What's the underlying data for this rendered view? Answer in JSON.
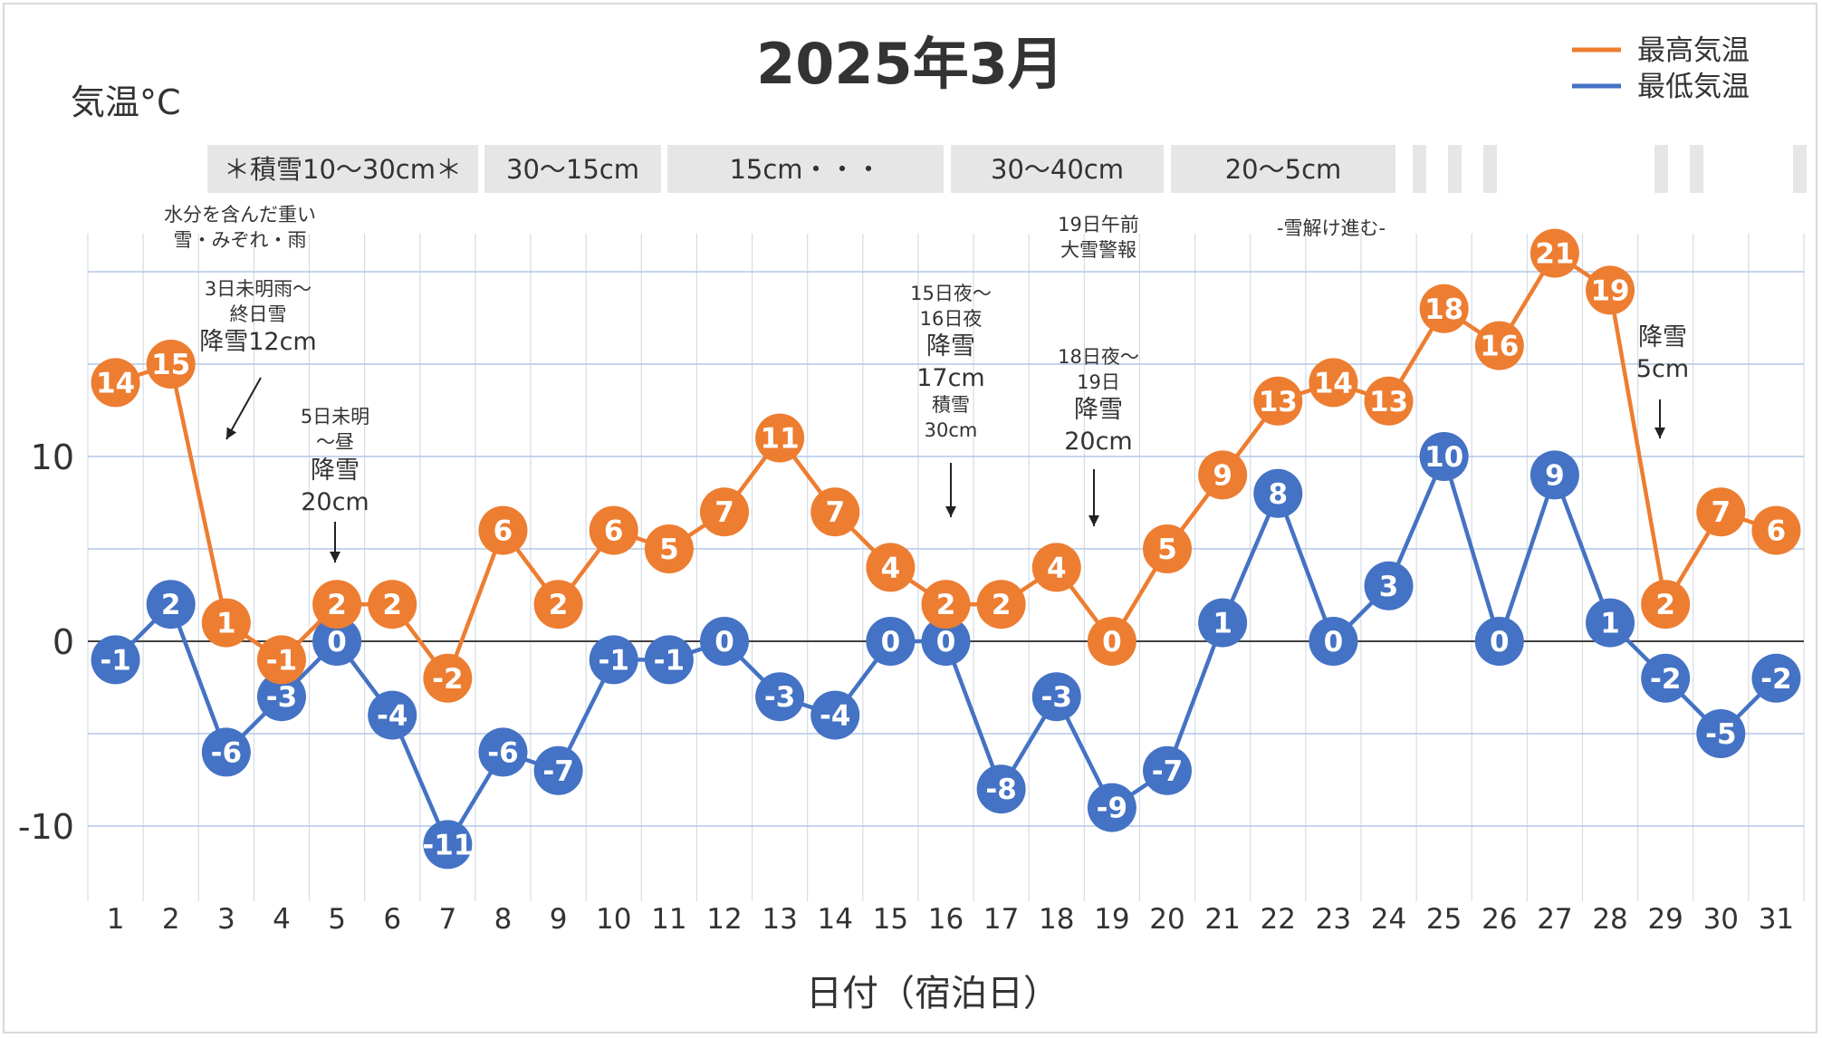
{
  "chart_data": {
    "type": "line",
    "title": "2025年3月",
    "ylabel": "気温°C",
    "xlabel": "日付（宿泊日）",
    "ylim": [
      -14.5,
      22
    ],
    "yticks": [
      -10,
      0,
      10
    ],
    "categories": [
      "1",
      "2",
      "3",
      "4",
      "5",
      "6",
      "7",
      "8",
      "9",
      "10",
      "11",
      "12",
      "13",
      "14",
      "15",
      "16",
      "17",
      "18",
      "19",
      "20",
      "21",
      "22",
      "23",
      "24",
      "25",
      "26",
      "27",
      "28",
      "29",
      "30",
      "31"
    ],
    "series": [
      {
        "name": "最高気温",
        "color": "#ed7d31",
        "values": [
          14,
          15,
          1,
          -1,
          2,
          2,
          -2,
          6,
          2,
          6,
          5,
          7,
          11,
          7,
          4,
          2,
          2,
          4,
          0,
          5,
          9,
          13,
          14,
          13,
          18,
          16,
          21,
          19,
          2,
          7,
          6
        ]
      },
      {
        "name": "最低気温",
        "color": "#4472c4",
        "values": [
          -1,
          2,
          -6,
          -3,
          0,
          -4,
          -11,
          -6,
          -7,
          -1,
          -1,
          0,
          -3,
          -4,
          0,
          0,
          -8,
          -3,
          -9,
          -7,
          1,
          8,
          0,
          3,
          10,
          0,
          9,
          1,
          -2,
          -5,
          -2
        ]
      }
    ],
    "legend_position": "top-right",
    "grid": true,
    "snow_bands": [
      {
        "label": "＊積雪10～30cm＊"
      },
      {
        "label": "30～15cm"
      },
      {
        "label": "15cm・・・"
      },
      {
        "label": "30～40cm"
      },
      {
        "label": "20～5cm"
      }
    ],
    "annotations": [
      {
        "lines": [
          "水分を含んだ重い",
          "雪・みぞれ・雨"
        ]
      },
      {
        "lines": [
          "3日未明雨～",
          "終日雪"
        ]
      },
      {
        "lines": [
          "降雪12cm"
        ]
      },
      {
        "lines": [
          "5日未明",
          "～昼"
        ]
      },
      {
        "lines": [
          "降雪",
          "20cm"
        ]
      },
      {
        "lines": [
          "15日夜～",
          "16日夜"
        ]
      },
      {
        "lines": [
          "降雪",
          "17cm"
        ]
      },
      {
        "lines": [
          "積雪",
          "30cm"
        ]
      },
      {
        "lines": [
          "19日午前",
          "大雪警報"
        ]
      },
      {
        "lines": [
          "18日夜～",
          "19日"
        ]
      },
      {
        "lines": [
          "降雪",
          "20cm"
        ]
      },
      {
        "lines": [
          "-雪解け進む-"
        ]
      },
      {
        "lines": [
          "降雪",
          "5cm"
        ]
      }
    ]
  }
}
